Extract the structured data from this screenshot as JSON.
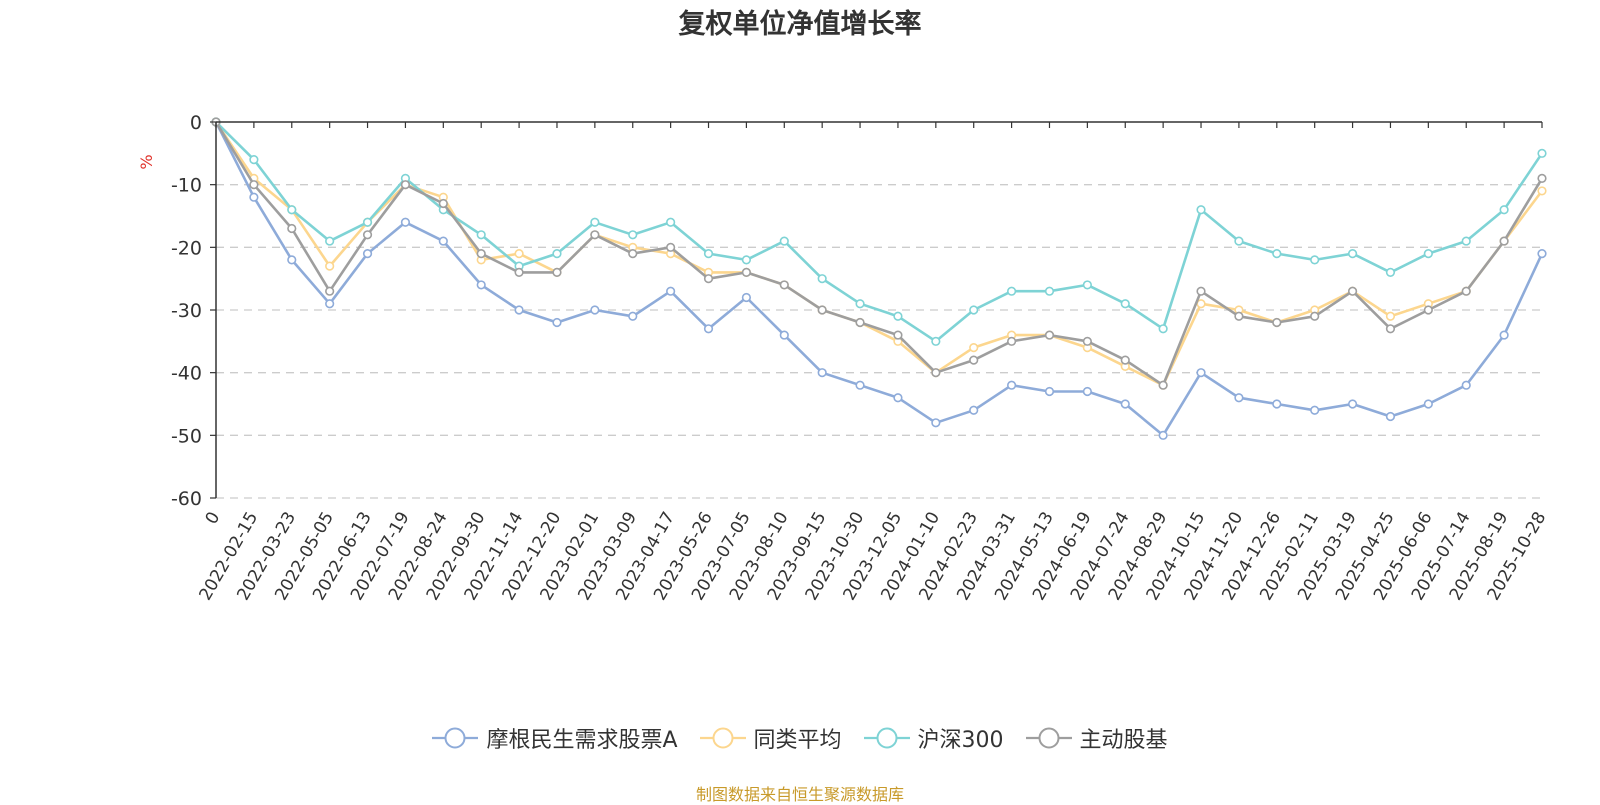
{
  "chart_data": {
    "type": "line",
    "title": "复权单位净值增长率",
    "ylabel": "%",
    "ylim": [
      -60,
      0
    ],
    "yticks": [
      0,
      -10,
      -20,
      -30,
      -40,
      -50,
      -60
    ],
    "grid": true,
    "legend_position": "bottom-center",
    "categories": [
      "0",
      "2022-02-15",
      "2022-03-23",
      "2022-05-05",
      "2022-06-13",
      "2022-07-19",
      "2022-08-24",
      "2022-09-30",
      "2022-11-14",
      "2022-12-20",
      "2023-02-01",
      "2023-03-09",
      "2023-04-17",
      "2023-05-26",
      "2023-07-05",
      "2023-08-10",
      "2023-09-15",
      "2023-10-30",
      "2023-12-05",
      "2024-01-10",
      "2024-02-23",
      "2024-03-31",
      "2024-05-13",
      "2024-06-19",
      "2024-07-24",
      "2024-08-29",
      "2024-10-15",
      "2024-11-20",
      "2024-12-26",
      "2025-02-11",
      "2025-03-19",
      "2025-04-25",
      "2025-06-06",
      "2025-07-14",
      "2025-08-19",
      "2025-10-28"
    ],
    "series": [
      {
        "name": "摩根民生需求股票A",
        "color": "#8eabd9",
        "values": [
          0,
          -12,
          -22,
          -29,
          -21,
          -16,
          -19,
          -26,
          -30,
          -32,
          -30,
          -31,
          -27,
          -33,
          -28,
          -34,
          -40,
          -42,
          -44,
          -48,
          -46,
          -42,
          -43,
          -43,
          -45,
          -50,
          -40,
          -44,
          -45,
          -46,
          -45,
          -47,
          -45,
          -42,
          -34,
          -21
        ]
      },
      {
        "name": "同类平均",
        "color": "#fcd68e",
        "values": [
          0,
          -9,
          -14,
          -23,
          -16,
          -10,
          -12,
          -22,
          -21,
          -24,
          -18,
          -20,
          -21,
          -24,
          -24,
          -26,
          -30,
          -32,
          -35,
          -40,
          -36,
          -34,
          -34,
          -36,
          -39,
          -42,
          -29,
          -30,
          -32,
          -30,
          -27,
          -31,
          -29,
          -27,
          -19,
          -11
        ]
      },
      {
        "name": "沪深300",
        "color": "#7ed3d5",
        "values": [
          0,
          -6,
          -14,
          -19,
          -16,
          -9,
          -14,
          -18,
          -23,
          -21,
          -16,
          -18,
          -16,
          -21,
          -22,
          -19,
          -25,
          -29,
          -31,
          -35,
          -30,
          -27,
          -27,
          -26,
          -29,
          -33,
          -14,
          -19,
          -21,
          -22,
          -21,
          -24,
          -21,
          -19,
          -14,
          -5
        ]
      },
      {
        "name": "主动股基",
        "color": "#9e9e9e",
        "values": [
          0,
          -10,
          -17,
          -27,
          -18,
          -10,
          -13,
          -21,
          -24,
          -24,
          -18,
          -21,
          -20,
          -25,
          -24,
          -26,
          -30,
          -32,
          -34,
          -40,
          -38,
          -35,
          -34,
          -35,
          -38,
          -42,
          -27,
          -31,
          -32,
          -31,
          -27,
          -33,
          -30,
          -27,
          -19,
          -9
        ]
      }
    ]
  },
  "source_note": "制图数据来自恒生聚源数据库",
  "colors": {
    "axis": "#333333",
    "grid": "#cccccc",
    "unit": "#e0322b",
    "source": "#c89a2a"
  }
}
